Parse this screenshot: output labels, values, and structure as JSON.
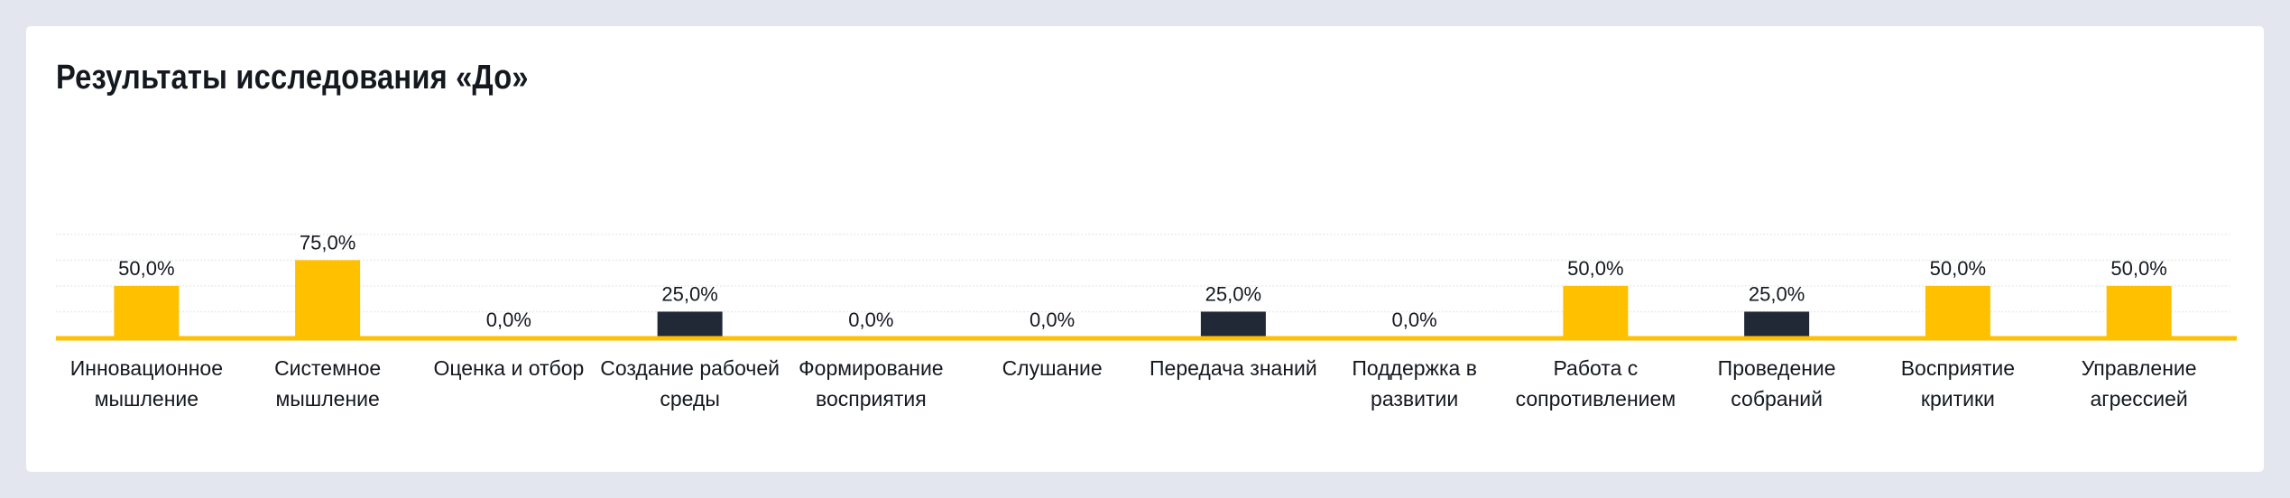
{
  "chart_data": {
    "type": "bar",
    "title": "Результаты исследования «До»",
    "xlabel": "",
    "ylabel": "",
    "ylim": [
      0,
      100
    ],
    "grid": true,
    "categories": [
      [
        "Инновационное",
        "мышление"
      ],
      [
        "Системное",
        "мышление"
      ],
      [
        "Оценка и отбор"
      ],
      [
        "Создание рабочей",
        "среды"
      ],
      [
        "Формирование",
        "восприятия"
      ],
      [
        "Слушание"
      ],
      [
        "Передача знаний"
      ],
      [
        "Поддержка в",
        "развитии"
      ],
      [
        "Работа с",
        "сопротивлением"
      ],
      [
        "Проведение",
        "собраний"
      ],
      [
        "Восприятие",
        "критики"
      ],
      [
        "Управление",
        "агрессией"
      ]
    ],
    "values": [
      50,
      75,
      0,
      25,
      0,
      0,
      25,
      0,
      50,
      25,
      50,
      50
    ],
    "value_labels": [
      "50,0%",
      "75,0%",
      "0,0%",
      "25,0%",
      "0,0%",
      "0,0%",
      "25,0%",
      "0,0%",
      "50,0%",
      "25,0%",
      "50,0%",
      "50,0%"
    ],
    "bar_colors": [
      "#ffc000",
      "#ffc000",
      "#ffc000",
      "#212936",
      "#ffc000",
      "#ffc000",
      "#212936",
      "#ffc000",
      "#ffc000",
      "#212936",
      "#ffc000",
      "#ffc000"
    ]
  },
  "colors": {
    "background": "#e3e6ef",
    "card": "#ffffff",
    "accent": "#ffc000",
    "dark": "#212936",
    "text": "#14181f"
  }
}
